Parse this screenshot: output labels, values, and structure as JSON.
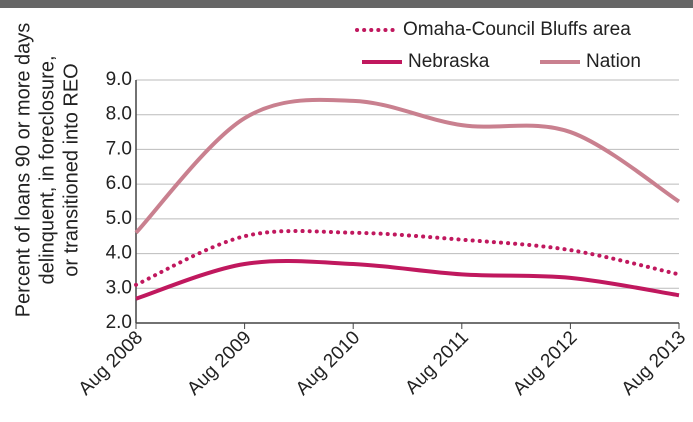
{
  "chart_data": {
    "type": "line",
    "ylabel": [
      "Percent of loans 90 or more days",
      "delinquent, in foreclosure,",
      "or transitioned into REO"
    ],
    "categories": [
      "Aug 2008",
      "Aug 2009",
      "Aug 2010",
      "Aug 2011",
      "Aug 2012",
      "Aug 2013"
    ],
    "series": [
      {
        "name": "Omaha-Council Bluffs area",
        "color": "#c0185e",
        "dash": "dotted",
        "values": [
          3.1,
          4.5,
          4.6,
          4.4,
          4.1,
          3.4
        ]
      },
      {
        "name": "Nebraska",
        "color": "#c0185e",
        "dash": "solid",
        "values": [
          2.7,
          3.7,
          3.7,
          3.4,
          3.3,
          2.8
        ]
      },
      {
        "name": "Nation",
        "color": "#c9808f",
        "dash": "solid",
        "values": [
          4.6,
          7.9,
          8.4,
          7.7,
          7.5,
          5.5
        ]
      }
    ],
    "ylim": [
      2,
      9
    ],
    "yticks": [
      {
        "value": 2,
        "label": "2.0"
      },
      {
        "value": 3,
        "label": "3.0"
      },
      {
        "value": 4,
        "label": "4.0"
      },
      {
        "value": 5,
        "label": "5.0"
      },
      {
        "value": 6,
        "label": "6.0"
      },
      {
        "value": 7,
        "label": "7.0"
      },
      {
        "value": 8,
        "label": "8.0"
      },
      {
        "value": 9,
        "label": "9.0"
      }
    ],
    "grid": true
  }
}
